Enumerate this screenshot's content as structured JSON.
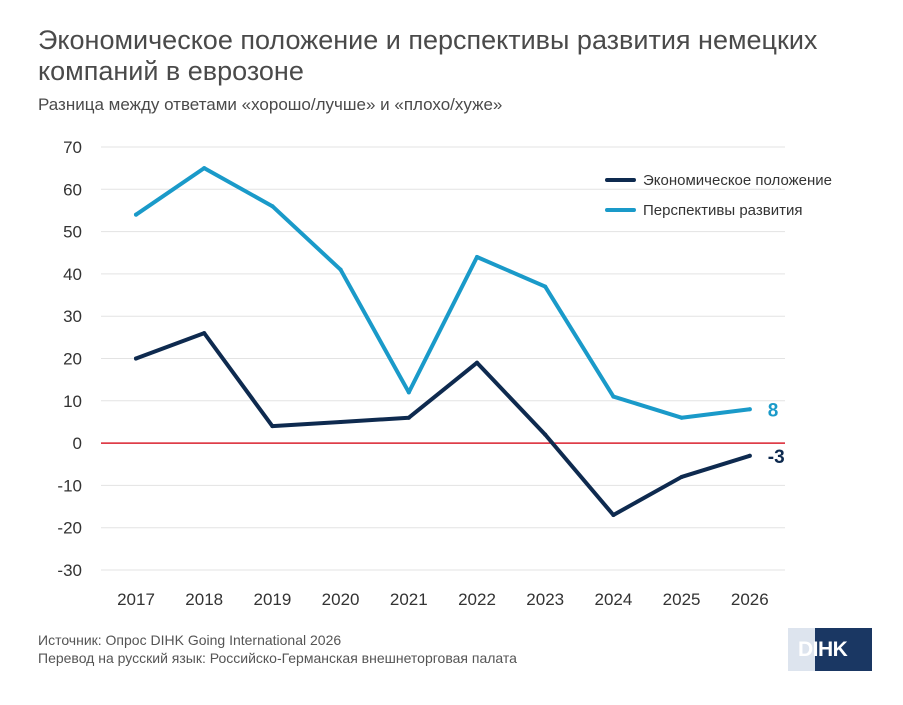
{
  "header": {
    "title": "Экономическое положение и перспективы развития немецких компаний в еврозоне",
    "subtitle": "Разница между ответами «хорошо/лучше» и «плохо/хуже»"
  },
  "footer": {
    "source": "Источник: Опрос DIHK Going International 2026",
    "translation": "Перевод на русский язык: Российско-Германская внешнеторговая палата"
  },
  "logo": {
    "text": "DIHK"
  },
  "chart_data": {
    "type": "line",
    "title": "Экономическое положение и перспективы развития немецких компаний в еврозоне",
    "subtitle": "Разница между ответами «хорошо/лучше» и «плохо/хуже»",
    "x": [
      "2017",
      "2018",
      "2019",
      "2020",
      "2021",
      "2022",
      "2023",
      "2024",
      "2025",
      "2026"
    ],
    "ylim": [
      -30,
      70
    ],
    "yticks": [
      70,
      60,
      50,
      40,
      30,
      20,
      10,
      0,
      -10,
      -20,
      -30
    ],
    "grid": true,
    "legend_position": "top-right",
    "zero_line_color": "#d9212e",
    "series": [
      {
        "name": "Экономическое положение",
        "color": "#0e2a4f",
        "values": [
          20,
          26,
          4,
          5,
          6,
          19,
          2,
          -17,
          -8,
          -3
        ],
        "end_label": "-3"
      },
      {
        "name": "Перспективы развития",
        "color": "#1a9ac9",
        "values": [
          54,
          65,
          56,
          41,
          12,
          44,
          37,
          11,
          6,
          8
        ],
        "end_label": "8"
      }
    ]
  }
}
